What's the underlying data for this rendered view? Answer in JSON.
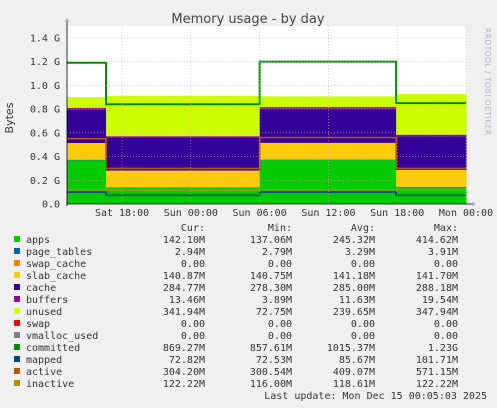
{
  "chart_data": {
    "type": "area",
    "title": "Memory usage - by day",
    "ylabel": "Bytes",
    "side_label": "RRDTOOL / TOBI OETIKER",
    "ylim": [
      0,
      1.5
    ],
    "y_unit": "G",
    "yticks": [
      {
        "v": 0.0,
        "label": "0.0"
      },
      {
        "v": 0.2,
        "label": "0.2 G"
      },
      {
        "v": 0.4,
        "label": "0.4 G"
      },
      {
        "v": 0.6,
        "label": "0.6 G"
      },
      {
        "v": 0.8,
        "label": "0.8 G"
      },
      {
        "v": 1.0,
        "label": "1.0 G"
      },
      {
        "v": 1.2,
        "label": "1.2 G"
      },
      {
        "v": 1.4,
        "label": "1.4 G"
      }
    ],
    "xticks": [
      "Sat 18:00",
      "Sun 00:00",
      "Sun 06:00",
      "Sun 12:00",
      "Sun 18:00",
      "Mon 00:00"
    ],
    "xtick_hours": [
      18,
      24,
      30,
      36,
      42,
      48
    ],
    "x_range_hours": [
      13.2,
      48
    ],
    "grid": true,
    "columns": [
      "Cur:",
      "Min:",
      "Avg:",
      "Max:"
    ],
    "legend": [
      {
        "name": "apps",
        "color": "#00cc00",
        "cur": "142.10M",
        "min": "137.06M",
        "avg": "245.32M",
        "max": "414.62M"
      },
      {
        "name": "page_tables",
        "color": "#0066b3",
        "cur": "2.94M",
        "min": "2.79M",
        "avg": "3.29M",
        "max": "3.91M"
      },
      {
        "name": "swap_cache",
        "color": "#ff8000",
        "cur": "0.00",
        "min": "0.00",
        "avg": "0.00",
        "max": "0.00"
      },
      {
        "name": "slab_cache",
        "color": "#ffcc00",
        "cur": "140.87M",
        "min": "140.75M",
        "avg": "141.18M",
        "max": "141.70M"
      },
      {
        "name": "cache",
        "color": "#330099",
        "cur": "284.77M",
        "min": "278.30M",
        "avg": "285.00M",
        "max": "288.18M"
      },
      {
        "name": "buffers",
        "color": "#990099",
        "cur": "13.46M",
        "min": "3.89M",
        "avg": "11.63M",
        "max": "19.54M"
      },
      {
        "name": "unused",
        "color": "#ccff00",
        "cur": "341.94M",
        "min": "72.75M",
        "avg": "239.65M",
        "max": "347.94M"
      },
      {
        "name": "swap",
        "color": "#ff0000",
        "cur": "0.00",
        "min": "0.00",
        "avg": "0.00",
        "max": "0.00"
      },
      {
        "name": "vmalloc_used",
        "color": "#808080",
        "cur": "0.00",
        "min": "0.00",
        "avg": "0.00",
        "max": "0.00"
      },
      {
        "name": "committed",
        "color": "#008f00",
        "cur": "869.27M",
        "min": "857.61M",
        "avg": "1015.37M",
        "max": "1.23G"
      },
      {
        "name": "mapped",
        "color": "#00487d",
        "cur": "72.82M",
        "min": "72.53M",
        "avg": "85.67M",
        "max": "101.71M"
      },
      {
        "name": "active",
        "color": "#b35a00",
        "cur": "304.20M",
        "min": "300.54M",
        "avg": "409.07M",
        "max": "571.15M"
      },
      {
        "name": "inactive",
        "color": "#b38f00",
        "cur": "122.22M",
        "min": "116.00M",
        "avg": "118.61M",
        "max": "122.22M"
      }
    ],
    "phases": [
      {
        "from": 13.2,
        "to": 16.6,
        "apps": 0.37,
        "page_tables": 0.003,
        "slab_cache": 0.141,
        "cache": 0.285,
        "buffers": 0.012,
        "unused": 0.09,
        "committed": 1.19,
        "mapped": 0.1,
        "active": 0.55,
        "inactive": 0.118
      },
      {
        "from": 16.6,
        "to": 30.0,
        "apps": 0.137,
        "page_tables": 0.003,
        "slab_cache": 0.141,
        "cache": 0.28,
        "buffers": 0.01,
        "unused": 0.34,
        "committed": 0.84,
        "mapped": 0.073,
        "active": 0.3,
        "inactive": 0.117
      },
      {
        "from": 30.0,
        "to": 41.9,
        "apps": 0.37,
        "page_tables": 0.004,
        "slab_cache": 0.141,
        "cache": 0.287,
        "buffers": 0.015,
        "unused": 0.09,
        "committed": 1.2,
        "mapped": 0.1,
        "active": 0.56,
        "inactive": 0.119
      },
      {
        "from": 41.9,
        "to": 48.0,
        "apps": 0.142,
        "page_tables": 0.003,
        "slab_cache": 0.141,
        "cache": 0.285,
        "buffers": 0.013,
        "unused": 0.342,
        "committed": 0.85,
        "mapped": 0.073,
        "active": 0.3,
        "inactive": 0.122
      }
    ],
    "last_update": "Last update: Mon Dec 15 00:05:03 2025"
  }
}
